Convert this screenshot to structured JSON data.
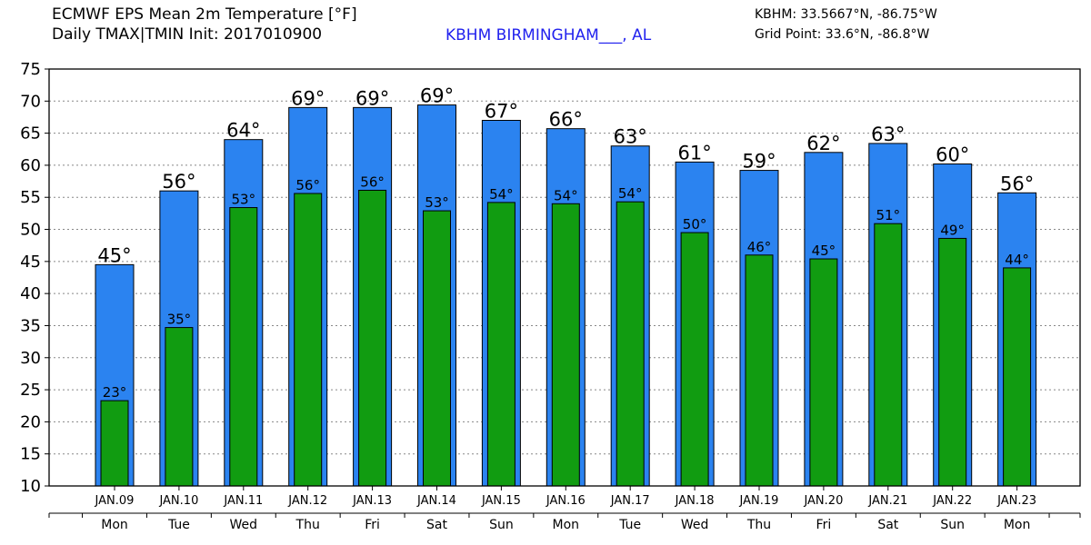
{
  "header": {
    "title_line1": "ECMWF EPS Mean 2m Temperature [°F]",
    "title_line2": "Daily TMAX|TMIN Init: 2017010900",
    "station": "KBHM BIRMINGHAM___, AL",
    "coords": "KBHM: 33.5667°N, -86.75°W",
    "grid_point": "Grid Point: 33.6°N, -86.8°W"
  },
  "chart_data": {
    "type": "bar",
    "categories": [
      "JAN.09",
      "JAN.10",
      "JAN.11",
      "JAN.12",
      "JAN.13",
      "JAN.14",
      "JAN.15",
      "JAN.16",
      "JAN.17",
      "JAN.18",
      "JAN.19",
      "JAN.20",
      "JAN.21",
      "JAN.22",
      "JAN.23"
    ],
    "weekdays": [
      "Mon",
      "Tue",
      "Wed",
      "Thu",
      "Fri",
      "Sat",
      "Sun",
      "Mon",
      "Tue",
      "Wed",
      "Thu",
      "Fri",
      "Sat",
      "Sun",
      "Mon"
    ],
    "series": [
      {
        "values": [
          44.5,
          56,
          64,
          69,
          69,
          69.4,
          67,
          65.7,
          63,
          60.5,
          59.2,
          62,
          63.4,
          60.2,
          55.7
        ],
        "labels": [
          "45°",
          "56°",
          "64°",
          "69°",
          "69°",
          "69°",
          "67°",
          "66°",
          "63°",
          "61°",
          "59°",
          "62°",
          "63°",
          "60°",
          "56°"
        ],
        "color": "#2b83f0"
      },
      {
        "values": [
          23.3,
          34.7,
          53.4,
          55.6,
          56.1,
          52.9,
          54.2,
          54,
          54.3,
          49.5,
          46,
          45.4,
          50.9,
          48.6,
          44
        ],
        "labels": [
          "23°",
          "35°",
          "53°",
          "56°",
          "56°",
          "53°",
          "54°",
          "54°",
          "54°",
          "50°",
          "46°",
          "45°",
          "51°",
          "49°",
          "44°"
        ],
        "color": "#119c11"
      }
    ],
    "ylim": [
      10,
      75
    ],
    "yticks": [
      10,
      15,
      20,
      25,
      30,
      35,
      40,
      45,
      50,
      55,
      60,
      65,
      70,
      75
    ],
    "grid": true
  }
}
